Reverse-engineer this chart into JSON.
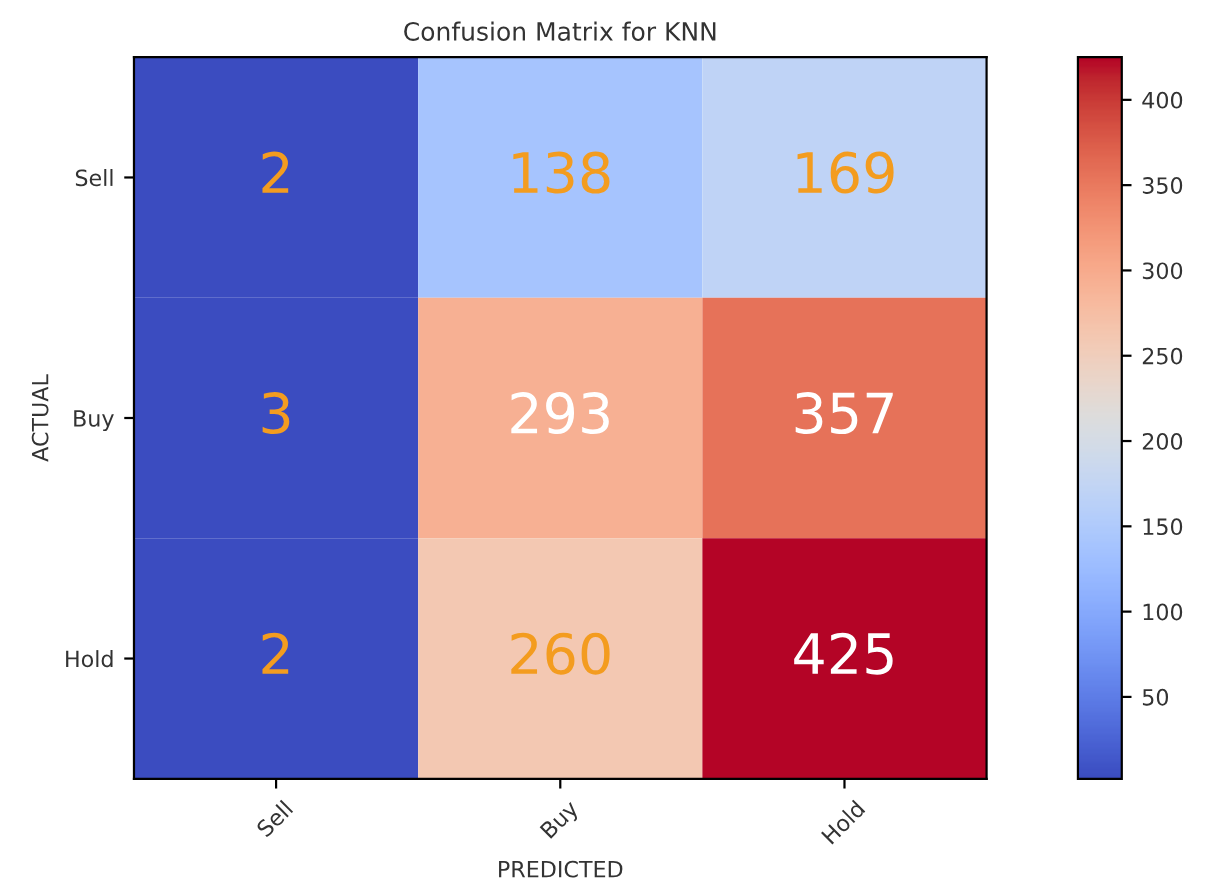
{
  "chart_data": {
    "type": "heatmap",
    "title": "Confusion Matrix for KNN",
    "xlabel": "PREDICTED",
    "ylabel": "ACTUAL",
    "categories": [
      "Sell",
      "Buy",
      "Hold"
    ],
    "y_categories": [
      "Sell",
      "Buy",
      "Hold"
    ],
    "cells": [
      [
        2,
        138,
        169
      ],
      [
        3,
        293,
        357
      ],
      [
        2,
        260,
        425
      ]
    ],
    "clim": [
      2,
      425
    ],
    "cticks": [
      50,
      100,
      150,
      200,
      250,
      300,
      350,
      400
    ],
    "data_labels": true
  }
}
